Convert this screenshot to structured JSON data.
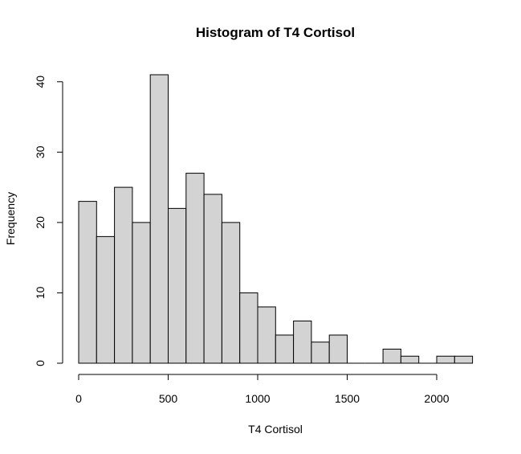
{
  "chart_data": {
    "type": "bar",
    "title": "Histogram of T4 Cortisol",
    "xlabel": "T4 Cortisol",
    "ylabel": "Frequency",
    "bin_width": 100,
    "bins": [
      {
        "start": 0,
        "end": 100,
        "count": 23
      },
      {
        "start": 100,
        "end": 200,
        "count": 18
      },
      {
        "start": 200,
        "end": 300,
        "count": 25
      },
      {
        "start": 300,
        "end": 400,
        "count": 20
      },
      {
        "start": 400,
        "end": 500,
        "count": 41
      },
      {
        "start": 500,
        "end": 600,
        "count": 22
      },
      {
        "start": 600,
        "end": 700,
        "count": 27
      },
      {
        "start": 700,
        "end": 800,
        "count": 24
      },
      {
        "start": 800,
        "end": 900,
        "count": 20
      },
      {
        "start": 900,
        "end": 1000,
        "count": 10
      },
      {
        "start": 1000,
        "end": 1100,
        "count": 8
      },
      {
        "start": 1100,
        "end": 1200,
        "count": 4
      },
      {
        "start": 1200,
        "end": 1300,
        "count": 6
      },
      {
        "start": 1300,
        "end": 1400,
        "count": 3
      },
      {
        "start": 1400,
        "end": 1500,
        "count": 4
      },
      {
        "start": 1500,
        "end": 1600,
        "count": 0
      },
      {
        "start": 1600,
        "end": 1700,
        "count": 0
      },
      {
        "start": 1700,
        "end": 1800,
        "count": 2
      },
      {
        "start": 1800,
        "end": 1900,
        "count": 1
      },
      {
        "start": 1900,
        "end": 2000,
        "count": 0
      },
      {
        "start": 2000,
        "end": 2100,
        "count": 1
      },
      {
        "start": 2100,
        "end": 2200,
        "count": 1
      }
    ],
    "xticks": [
      0,
      500,
      1000,
      1500,
      2000
    ],
    "yticks": [
      0,
      10,
      20,
      30,
      40
    ],
    "xlim": [
      0,
      2200
    ],
    "ylim": [
      0,
      41
    ],
    "grid": false,
    "bar_fill": "#d3d3d3",
    "bar_stroke": "#000000"
  }
}
